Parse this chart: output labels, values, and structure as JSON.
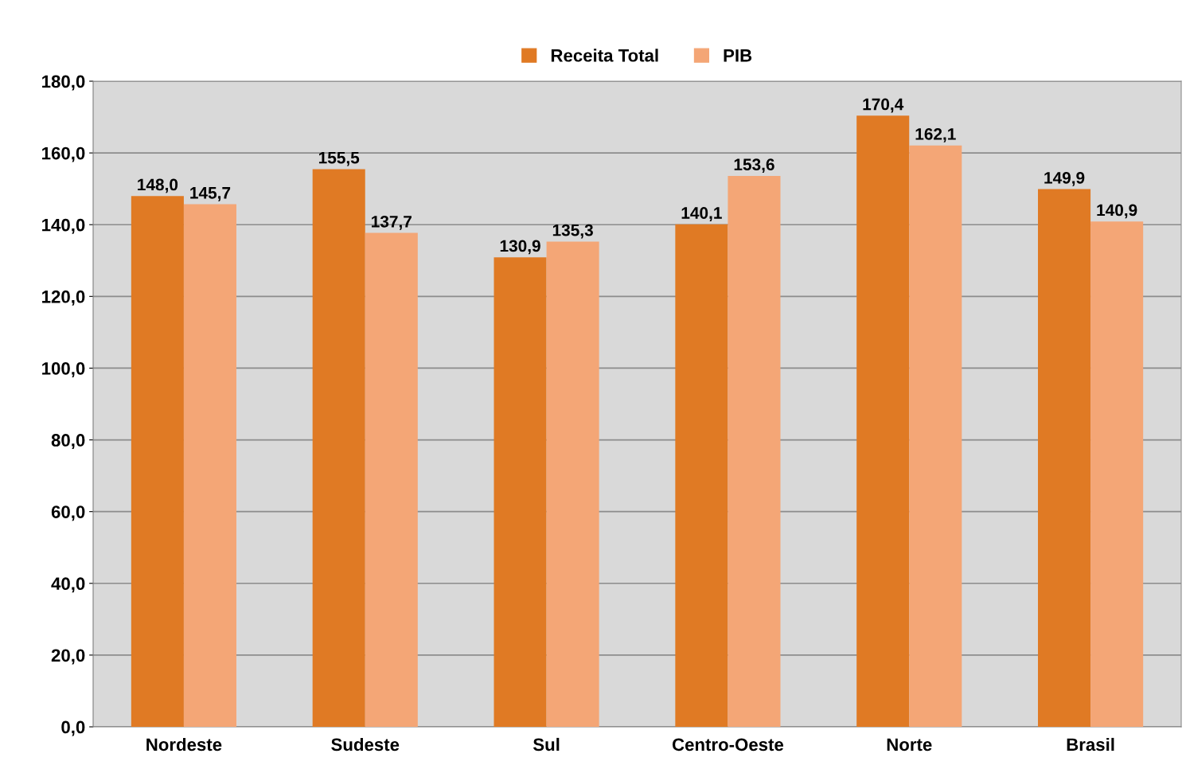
{
  "chart_data": {
    "type": "bar",
    "categories": [
      "Nordeste",
      "Sudeste",
      "Sul",
      "Centro-Oeste",
      "Norte",
      "Brasil"
    ],
    "series": [
      {
        "name": "Receita Total",
        "color": "#e07a24",
        "values": [
          148.0,
          155.5,
          130.9,
          140.1,
          170.4,
          149.9
        ],
        "value_labels": [
          "148,0",
          "155,5",
          "130,9",
          "140,1",
          "170,4",
          "149,9"
        ]
      },
      {
        "name": "PIB",
        "color": "#f4a676",
        "values": [
          145.7,
          137.7,
          135.3,
          153.6,
          162.1,
          140.9
        ],
        "value_labels": [
          "145,7",
          "137,7",
          "135,3",
          "153,6",
          "162,1",
          "140,9"
        ]
      }
    ],
    "ylim": [
      0,
      180
    ],
    "yticks": [
      {
        "value": 0,
        "label": "0,0"
      },
      {
        "value": 20,
        "label": "20,0"
      },
      {
        "value": 40,
        "label": "40,0"
      },
      {
        "value": 60,
        "label": "60,0"
      },
      {
        "value": 80,
        "label": "80,0"
      },
      {
        "value": 100,
        "label": "100,0"
      },
      {
        "value": 120,
        "label": "120,0"
      },
      {
        "value": 140,
        "label": "140,0"
      },
      {
        "value": 160,
        "label": "160,0"
      },
      {
        "value": 180,
        "label": "180,0"
      }
    ],
    "grid": "y",
    "legend": "top"
  }
}
